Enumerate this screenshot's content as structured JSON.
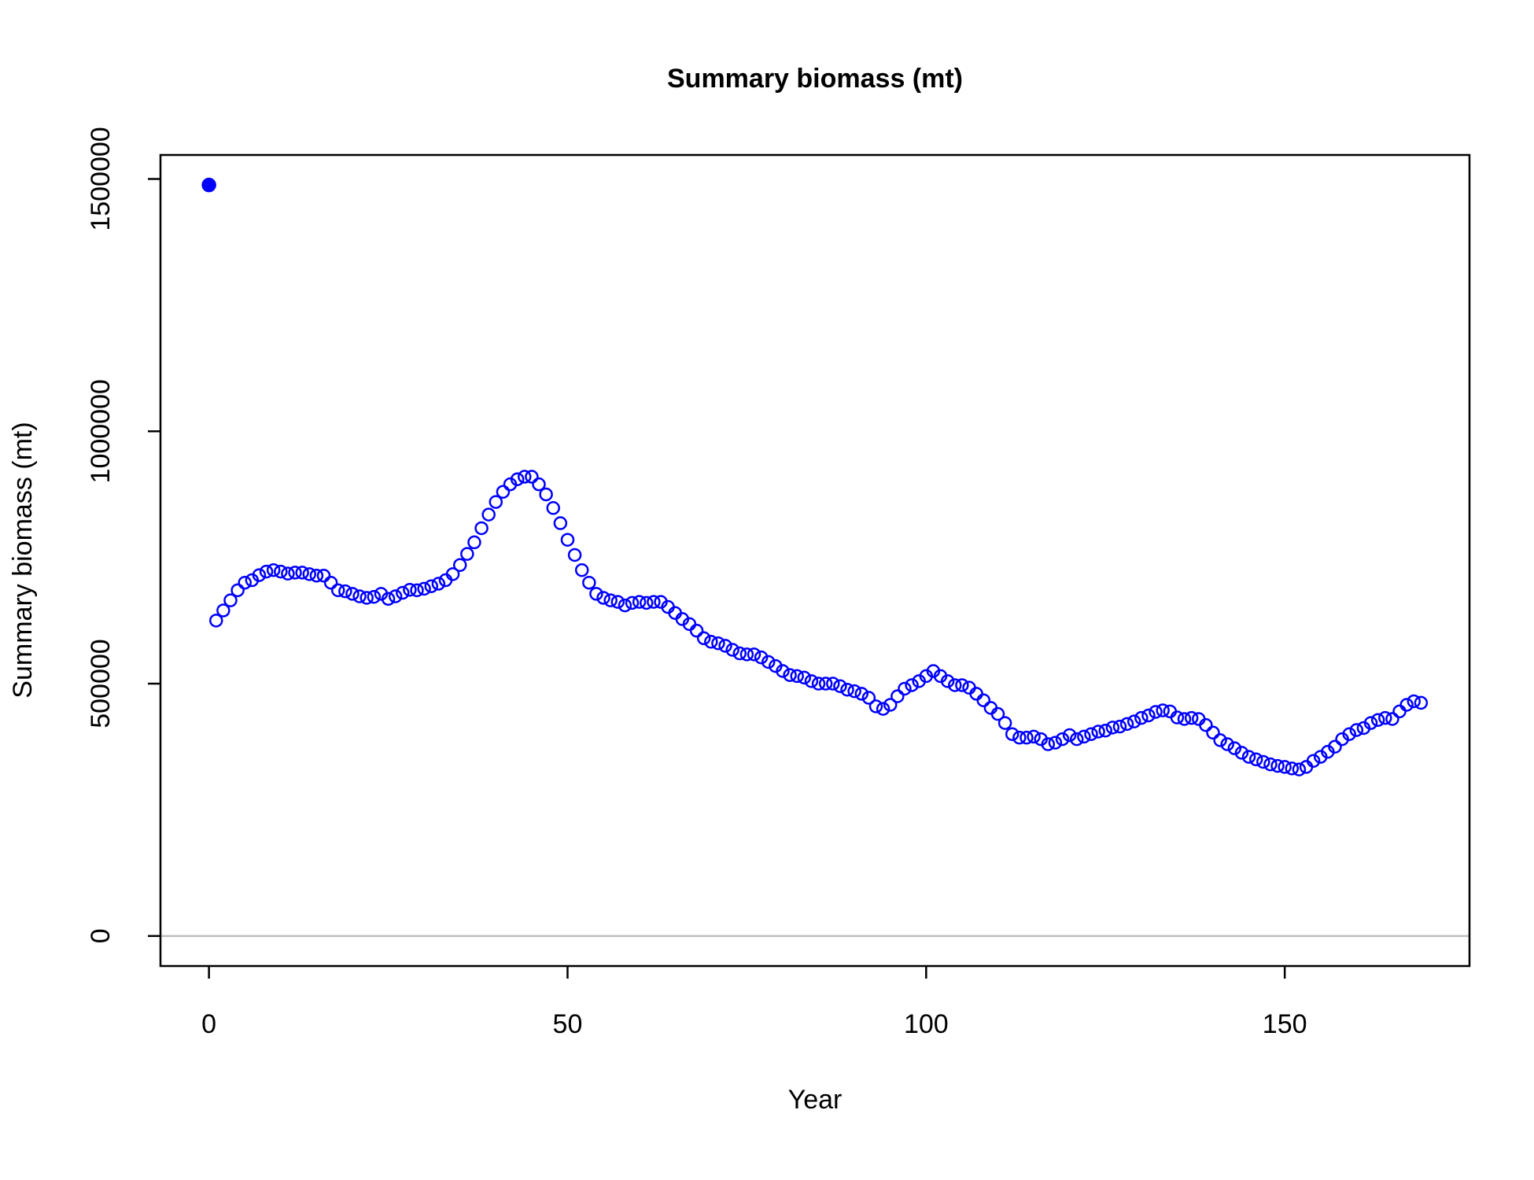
{
  "chart_data": {
    "type": "scatter",
    "title": "Summary biomass (mt)",
    "x_label": "Year",
    "y_label": "Summary biomass (mt)",
    "series": [
      {
        "color": "#0000ff",
        "marker": "filled",
        "x": [
          0
        ],
        "values": [
          1488000
        ]
      },
      {
        "color": "#0000ff",
        "marker": "open",
        "x": [
          1,
          2,
          3,
          4,
          5,
          6,
          7,
          8,
          9,
          10,
          11,
          12,
          13,
          14,
          15,
          16,
          17,
          18,
          19,
          20,
          21,
          22,
          23,
          24,
          25,
          26,
          27,
          28,
          29,
          30,
          31,
          32,
          33,
          34,
          35,
          36,
          37,
          38,
          39,
          40,
          41,
          42,
          43,
          44,
          45,
          46,
          47,
          48,
          49,
          50,
          51,
          52,
          53,
          54,
          55,
          56,
          57,
          58,
          59,
          60,
          61,
          62,
          63,
          64,
          65,
          66,
          67,
          68,
          69,
          70,
          71,
          72,
          73,
          74,
          75,
          76,
          77,
          78,
          79,
          80,
          81,
          82,
          83,
          84,
          85,
          86,
          87,
          88,
          89,
          90,
          91,
          92,
          93,
          94,
          95,
          96,
          97,
          98,
          99,
          100,
          101,
          102,
          103,
          104,
          105,
          106,
          107,
          108,
          109,
          110,
          111,
          112,
          113,
          114,
          115,
          116,
          117,
          118,
          119,
          120,
          121,
          122,
          123,
          124,
          125,
          126,
          127,
          128,
          129,
          130,
          131,
          132,
          133,
          134,
          135,
          136,
          137,
          138,
          139,
          140,
          141,
          142,
          143,
          144,
          145,
          146,
          147,
          148,
          149,
          150,
          151,
          152,
          153,
          154,
          155,
          156,
          157,
          158,
          159,
          160,
          161,
          162,
          163,
          164,
          165,
          166,
          167,
          168,
          169
        ],
        "values": [
          625000,
          645000,
          665000,
          685000,
          700000,
          705000,
          715000,
          722000,
          725000,
          722000,
          718000,
          720000,
          720000,
          717000,
          714000,
          714000,
          700000,
          685000,
          683000,
          678000,
          673000,
          670000,
          672000,
          678000,
          668000,
          673000,
          680000,
          686000,
          685000,
          688000,
          693000,
          698000,
          705000,
          717000,
          735000,
          757000,
          780000,
          808000,
          835000,
          860000,
          880000,
          895000,
          905000,
          910000,
          910000,
          895000,
          875000,
          848000,
          818000,
          785000,
          755000,
          725000,
          700000,
          678000,
          670000,
          665000,
          662000,
          655000,
          660000,
          662000,
          660000,
          662000,
          662000,
          652000,
          640000,
          628000,
          618000,
          605000,
          590000,
          583000,
          580000,
          575000,
          567000,
          560000,
          558000,
          558000,
          552000,
          543000,
          535000,
          525000,
          517000,
          515000,
          512000,
          505000,
          500000,
          500000,
          500000,
          495000,
          488000,
          485000,
          480000,
          472000,
          455000,
          450000,
          458000,
          475000,
          490000,
          497000,
          505000,
          515000,
          525000,
          515000,
          505000,
          497000,
          497000,
          492000,
          480000,
          467000,
          452000,
          440000,
          422000,
          400000,
          393000,
          393000,
          395000,
          390000,
          380000,
          383000,
          390000,
          398000,
          390000,
          395000,
          400000,
          405000,
          407000,
          413000,
          415000,
          420000,
          425000,
          432000,
          437000,
          444000,
          447000,
          445000,
          433000,
          430000,
          432000,
          430000,
          418000,
          403000,
          388000,
          380000,
          372000,
          363000,
          355000,
          350000,
          345000,
          340000,
          337000,
          335000,
          332000,
          330000,
          335000,
          347000,
          355000,
          365000,
          375000,
          390000,
          400000,
          408000,
          412000,
          422000,
          428000,
          432000,
          430000,
          445000,
          458000,
          465000,
          462000
        ]
      }
    ],
    "xlim": [
      -6.76,
      175.76
    ],
    "xticks": [
      0,
      50,
      100,
      150
    ],
    "ylim": [
      -59520,
      1547520
    ],
    "yticks": [
      0,
      500000,
      1000000,
      1500000
    ],
    "hline": 0,
    "hline_color": "#bebebe"
  }
}
